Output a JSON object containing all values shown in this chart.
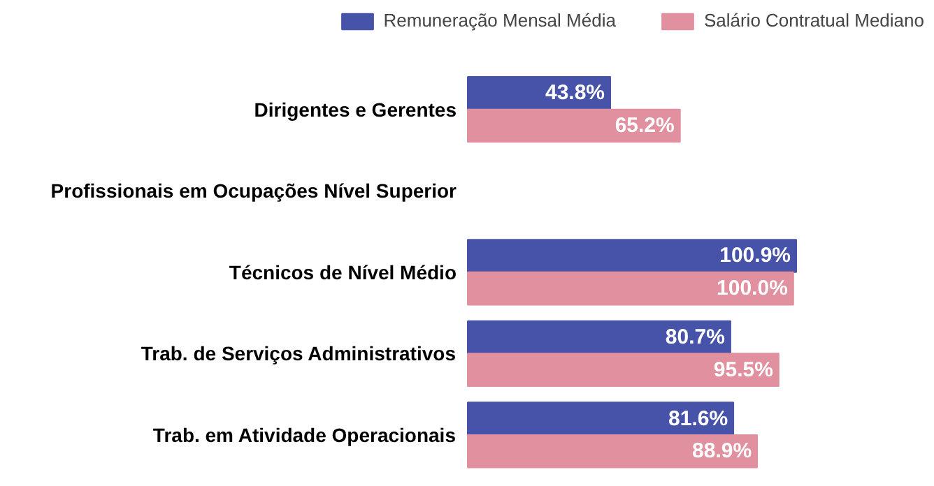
{
  "chart_data": {
    "type": "bar",
    "orientation": "horizontal",
    "legend": "top right",
    "categories": [
      "Dirigentes e Gerentes",
      "Profissionais em Ocupações Nível Superior",
      "Técnicos de Nível Médio",
      "Trab. de Serviços Administrativos",
      "Trab. em Atividade Operacionais"
    ],
    "series": [
      {
        "name": "Remuneração Mensal Média",
        "color": "#4753a8",
        "values": [
          43.8,
          null,
          100.9,
          80.7,
          81.6
        ],
        "value_labels": [
          "43.8%",
          null,
          "100.9%",
          "80.7%",
          "81.6%"
        ]
      },
      {
        "name": "Salário Contratual Mediano",
        "color": "#e0909e",
        "values": [
          65.2,
          null,
          100.0,
          95.5,
          88.9
        ],
        "value_labels": [
          "65.2%",
          null,
          "100.0%",
          "95.5%",
          "88.9%"
        ]
      }
    ]
  }
}
